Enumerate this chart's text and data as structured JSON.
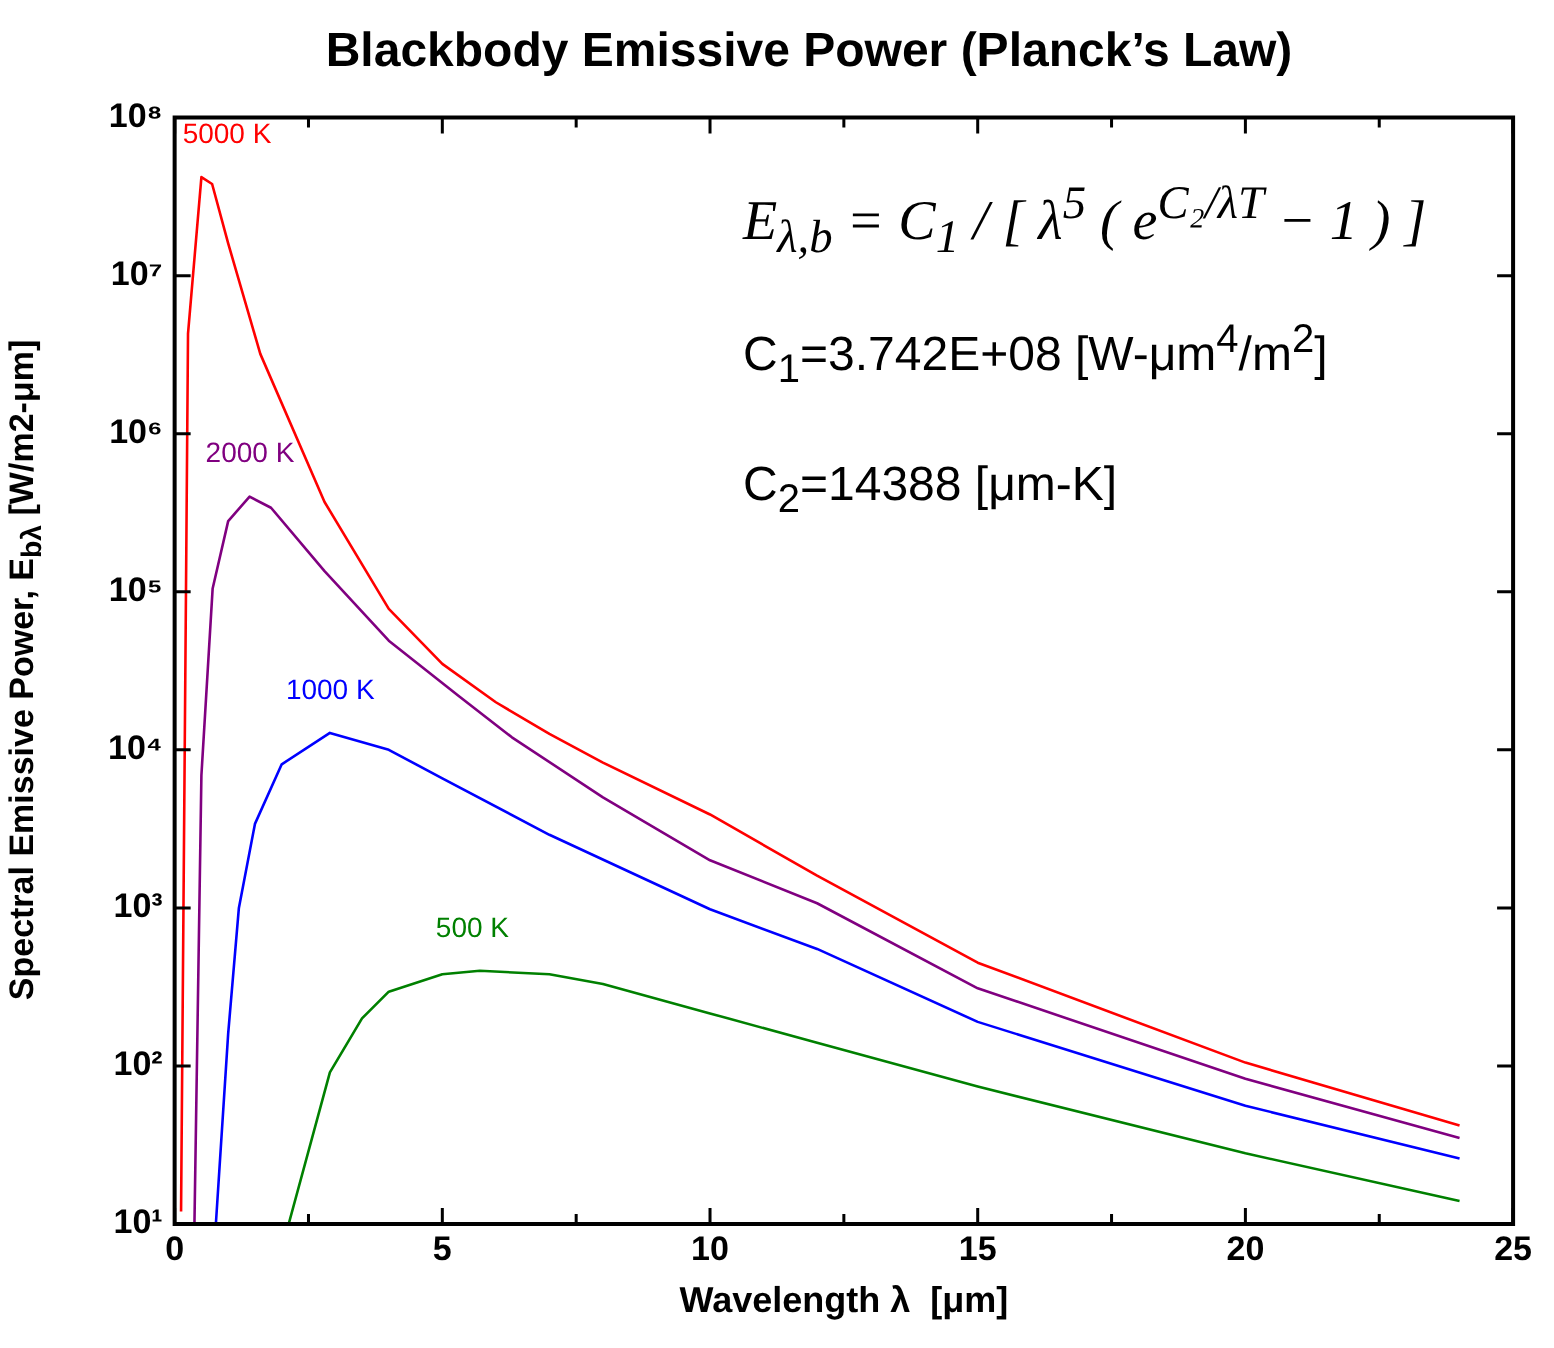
{
  "chart_data": {
    "type": "line",
    "title": "Blackbody Emissive Power (Planck’s Law)",
    "xlabel": "Wavelength λ  [μm]",
    "ylabel": "Spectral Emissive Power, E$_{bλ}$ [W/m2-μm]",
    "annotations": [
      "E$_{λ,b}$ = C$_{1}$ / [ λ$^{5}$ ( e$^{C₂/λT}$ − 1 ) ]",
      "C$_{1}$=3.742E+08 [W-μm$^{4}$/m$^{2}$]",
      "C$_{2}$=14388 [μm-K]"
    ],
    "series": [
      {
        "name": "5000 K",
        "color": "#ff0000",
        "x": [
          0.12,
          0.25,
          0.5,
          0.7,
          1,
          1.6,
          2.8,
          4,
          5,
          6,
          7,
          8,
          10,
          12,
          15,
          20,
          24
        ],
        "values": [
          12,
          4300000,
          42000000,
          38000000,
          16000000,
          3200000,
          370000,
          78000,
          35000,
          20000,
          12600,
          8300,
          3900,
          1600,
          450,
          105,
          42
        ]
      },
      {
        "name": "2000 K",
        "color": "#800080",
        "x": [
          0.37,
          0.5,
          0.71,
          1,
          1.4,
          1.8,
          2.8,
          4,
          5.3,
          6.3,
          8,
          10,
          12,
          15,
          20,
          24
        ],
        "values": [
          10,
          6900,
          105000,
          280000,
          400000,
          340000,
          135000,
          49000,
          22000,
          12000,
          5000,
          2000,
          1070,
          310,
          83,
          35
        ]
      },
      {
        "name": "1000 K",
        "color": "#0000ff",
        "x": [
          0.77,
          1,
          1.2,
          1.5,
          2,
          2.9,
          4,
          5,
          7,
          10,
          12,
          15,
          20,
          24
        ],
        "values": [
          10,
          160,
          1000,
          3400,
          8100,
          12800,
          10000,
          6600,
          2900,
          980,
          550,
          190,
          56,
          26
        ]
      },
      {
        "name": "500 K",
        "color": "#008000",
        "x": [
          2.13,
          2.9,
          3.5,
          4,
          5,
          5.7,
          7,
          8,
          10,
          12,
          15,
          20,
          24
        ],
        "values": [
          10,
          91,
          200,
          295,
          380,
          400,
          380,
          330,
          215,
          140,
          74,
          28,
          14
        ]
      }
    ],
    "xlim": [
      0,
      25
    ],
    "xticks": [
      0,
      {
        "value": 2.5,
        "label": null
      },
      5,
      {
        "value": 7.5,
        "label": null
      },
      10,
      {
        "value": 12.5,
        "label": null
      },
      15,
      {
        "value": 17.5,
        "label": null
      },
      20,
      {
        "value": 22.5,
        "label": null
      },
      25
    ],
    "ylim": [
      10,
      100000000
    ],
    "yticks": [
      {
        "value": 10,
        "label": "10¹"
      },
      {
        "value": 100,
        "label": "10²"
      },
      {
        "value": 1000,
        "label": "10³"
      },
      {
        "value": 10000,
        "label": "10⁴"
      },
      {
        "value": 100000,
        "label": "10⁵"
      },
      {
        "value": 1000000,
        "label": "10⁶"
      },
      {
        "value": 10000000,
        "label": "10⁷"
      },
      {
        "value": 100000000,
        "label": "10⁸"
      }
    ],
    "log": "y",
    "grid": false,
    "legend": false,
    "marker": "none",
    "line_style": "solid"
  }
}
